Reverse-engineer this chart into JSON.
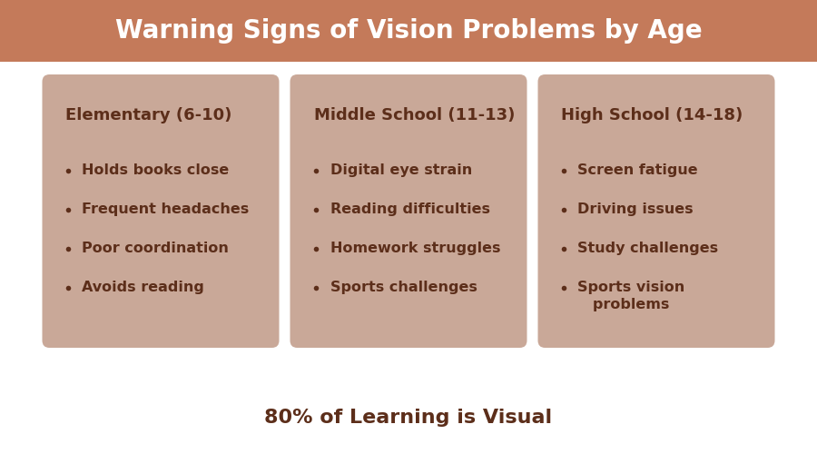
{
  "title": "Warning Signs of Vision Problems by Age",
  "title_color": "#ffffff",
  "title_bg_color": "#c47a5a",
  "title_fontsize": 20,
  "bg_color": "#ffffff",
  "card_bg_color": "#c9a898",
  "card_text_color": "#5c2e1a",
  "footer_text": "80% of Learning is Visual",
  "footer_fontsize": 16,
  "footer_color": "#5c2e1a",
  "cards": [
    {
      "title": "Elementary (6-10)",
      "items": [
        "Holds books close",
        "Frequent headaches",
        "Poor coordination",
        "Avoids reading"
      ]
    },
    {
      "title": "Middle School (11-13)",
      "items": [
        "Digital eye strain",
        "Reading difficulties",
        "Homework struggles",
        "Sports challenges"
      ]
    },
    {
      "title": "High School (14-18)",
      "items": [
        "Screen fatigue",
        "Driving issues",
        "Study challenges",
        "Sports vision\n   problems"
      ]
    }
  ]
}
